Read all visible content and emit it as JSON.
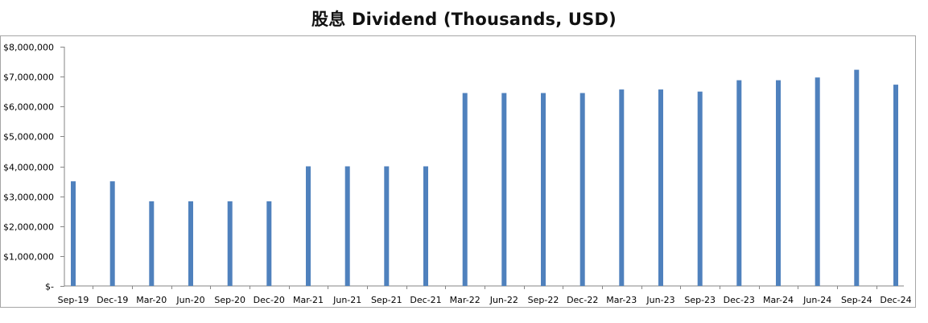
{
  "chart_data": {
    "type": "bar",
    "title": "股息 Dividend (Thousands, USD)",
    "xlabel": "",
    "ylabel": "",
    "ylim": [
      0,
      8000000
    ],
    "y_ticks": [
      0,
      1000000,
      2000000,
      3000000,
      4000000,
      5000000,
      6000000,
      7000000,
      8000000
    ],
    "y_tick_labels": [
      "$-",
      "$1,000,000",
      "$2,000,000",
      "$3,000,000",
      "$4,000,000",
      "$5,000,000",
      "$6,000,000",
      "$7,000,000",
      "$8,000,000"
    ],
    "grid": false,
    "legend": "none",
    "bar_color": "#4f81bd",
    "categories": [
      "Sep-19",
      "Dec-19",
      "Mar-20",
      "Jun-20",
      "Sep-20",
      "Dec-20",
      "Mar-21",
      "Jun-21",
      "Sep-21",
      "Dec-21",
      "Mar-22",
      "Jun-22",
      "Sep-22",
      "Dec-22",
      "Mar-23",
      "Jun-23",
      "Sep-23",
      "Dec-23",
      "Mar-24",
      "Jun-24",
      "Sep-24",
      "Dec-24"
    ],
    "values": [
      3500000,
      3500000,
      2830000,
      2830000,
      2830000,
      2830000,
      4000000,
      4000000,
      4000000,
      4000000,
      6450000,
      6450000,
      6450000,
      6450000,
      6570000,
      6570000,
      6500000,
      6880000,
      6880000,
      6970000,
      7230000,
      6730000
    ]
  }
}
